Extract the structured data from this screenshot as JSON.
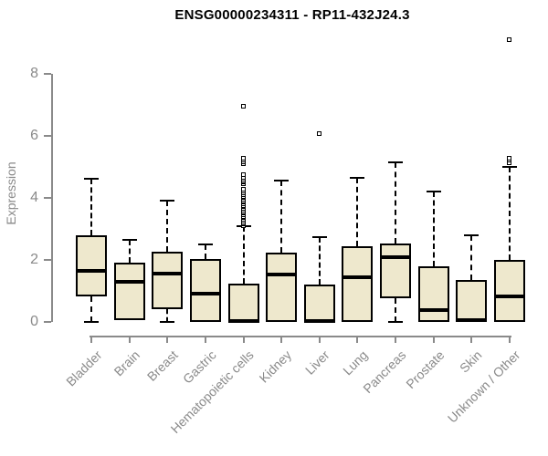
{
  "chart_data": {
    "type": "boxplot",
    "title": "ENSG00000234311 - RP11-432J24.3",
    "xlabel": "",
    "ylabel": "Expression",
    "ylim": [
      0,
      8
    ],
    "yticks": [
      0,
      2,
      4,
      6,
      8
    ],
    "grid": false,
    "legend": "none",
    "categories": [
      "Bladder",
      "Brain",
      "Breast",
      "Gastric",
      "Hematopoietic cells",
      "Kidney",
      "Liver",
      "Lung",
      "Pancreas",
      "Prostate",
      "Skin",
      "Unknown / Other"
    ],
    "series": [
      {
        "name": "Bladder",
        "low": 0,
        "q1": 0.82,
        "median": 1.65,
        "q3": 2.8,
        "high": 4.62,
        "outliers": []
      },
      {
        "name": "Brain",
        "low": 0.05,
        "q1": 0.05,
        "median": 1.28,
        "q3": 1.92,
        "high": 2.63,
        "outliers": []
      },
      {
        "name": "Breast",
        "low": 0,
        "q1": 0.4,
        "median": 1.55,
        "q3": 2.25,
        "high": 3.9,
        "outliers": []
      },
      {
        "name": "Gastric",
        "low": 0,
        "q1": 0,
        "median": 0.92,
        "q3": 2.02,
        "high": 2.5,
        "outliers": []
      },
      {
        "name": "Hematopoietic cells",
        "low": 0,
        "q1": 0,
        "median": 0.04,
        "q3": 1.22,
        "high": 3.07,
        "outliers": [
          3.1,
          3.15,
          3.2,
          3.25,
          3.3,
          3.35,
          3.4,
          3.45,
          3.5,
          3.55,
          3.6,
          3.65,
          3.7,
          3.75,
          3.8,
          3.85,
          3.9,
          3.95,
          4.0,
          4.05,
          4.1,
          4.15,
          4.2,
          4.28,
          4.45,
          4.5,
          4.55,
          4.6,
          4.65,
          4.75,
          5.1,
          5.15,
          5.22,
          5.28,
          6.95
        ]
      },
      {
        "name": "Kidney",
        "low": 0,
        "q1": 0,
        "median": 1.52,
        "q3": 2.23,
        "high": 4.54,
        "outliers": []
      },
      {
        "name": "Liver",
        "low": 0,
        "q1": 0,
        "median": 0.04,
        "q3": 1.21,
        "high": 2.73,
        "outliers": [
          6.05
        ]
      },
      {
        "name": "Lung",
        "low": 0,
        "q1": 0,
        "median": 1.45,
        "q3": 2.44,
        "high": 4.64,
        "outliers": []
      },
      {
        "name": "Pancreas",
        "low": 0,
        "q1": 0.77,
        "median": 2.07,
        "q3": 2.53,
        "high": 5.13,
        "outliers": []
      },
      {
        "name": "Prostate",
        "low": 0,
        "q1": 0,
        "median": 0.38,
        "q3": 1.8,
        "high": 4.2,
        "outliers": []
      },
      {
        "name": "Skin",
        "low": 0,
        "q1": 0,
        "median": 0.05,
        "q3": 1.36,
        "high": 2.78,
        "outliers": []
      },
      {
        "name": "Unknown / Other",
        "low": 0,
        "q1": 0,
        "median": 0.82,
        "q3": 2.0,
        "high": 5.0,
        "outliers": [
          5.12,
          5.2,
          5.27,
          9.1
        ]
      }
    ]
  },
  "colors": {
    "box_fill": "#eee8cd",
    "box_border": "#000000",
    "median": "#000000",
    "whisker": "#000000",
    "outlier_fill": "#ffffff",
    "axis": "#8a8a8a",
    "tick_label": "#8a8a8a",
    "title": "#000000",
    "background": "#ffffff"
  }
}
